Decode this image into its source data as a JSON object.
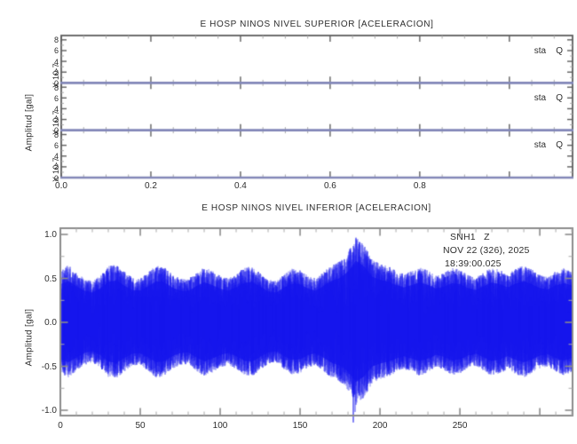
{
  "window": {
    "background": "#ffffff",
    "text_color": "#2e2e2e"
  },
  "chart_data": [
    {
      "type": "line",
      "panel_id": "superior",
      "title": "E HOSP NINOS NIVEL SUPERIOR [ACELERACION]",
      "ylabel": "Amplitud [gal]",
      "xlim": [
        0,
        1.141
      ],
      "x_tick_values": [
        0.0,
        0.2,
        0.4,
        0.6,
        0.8
      ],
      "x_tick_labels": [
        "0.0",
        "0.2",
        "0.4",
        "0.6",
        "0.8"
      ],
      "x_minor_step": 0.05,
      "grid": false,
      "frame_color": "#5f5f5f",
      "trace_color": "#8287b8",
      "subpanels": [
        {
          "scale_label": "X 10-7",
          "right_label": "sta    Q",
          "y_tick_values": [
            0,
            2,
            4,
            6,
            8
          ],
          "ylim": [
            0,
            8.8
          ],
          "trace": {
            "shape": "flat",
            "value": 0
          }
        },
        {
          "scale_label": "X 10-7",
          "right_label": "sta    Q",
          "y_tick_values": [
            0,
            2,
            4,
            6,
            8
          ],
          "ylim": [
            0,
            8.8
          ],
          "trace": {
            "shape": "flat",
            "value": 0
          }
        },
        {
          "scale_label": "X 10-7",
          "right_label": "sta    Q",
          "y_tick_values": [
            0,
            2,
            4,
            6,
            8
          ],
          "ylim": [
            0,
            8.8
          ],
          "trace": {
            "shape": "flat",
            "value": 0
          }
        }
      ]
    },
    {
      "type": "area",
      "panel_id": "inferior",
      "title": "E HOSP NINOS NIVEL INFERIOR [ACELERACION]",
      "ylabel": "Amplitud [gal]",
      "xlim": [
        0,
        320.5
      ],
      "x_tick_values": [
        0,
        50,
        100,
        150,
        200,
        250
      ],
      "x_tick_labels": [
        "0",
        "50",
        "100",
        "150",
        "200",
        "250"
      ],
      "x_minor_step": 10,
      "ylim": [
        -1.07,
        1.07
      ],
      "y_tick_values": [
        -1.0,
        -0.5,
        0.0,
        0.5,
        1.0
      ],
      "y_tick_labels": [
        "-1.0",
        "-0.5",
        "0.0",
        "0.5",
        "1.0"
      ],
      "y_minor_step": 0.25,
      "grid": false,
      "frame_color": "#8c8c8c",
      "trace_color": "#1515ec",
      "annotation": {
        "station": "SNH1   Z",
        "date": "NOV 22 (326), 2025",
        "time": "18:39:00.025"
      },
      "envelope": {
        "comment": "upper amplitude envelope of dense waveform, sampled every 5 s; lower envelope = -upper*lower_scale; peak burst near x=185",
        "x_start": 0,
        "x_step": 5,
        "upper": [
          0.6,
          0.65,
          0.57,
          0.5,
          0.47,
          0.53,
          0.64,
          0.66,
          0.58,
          0.51,
          0.5,
          0.57,
          0.65,
          0.63,
          0.55,
          0.5,
          0.49,
          0.57,
          0.63,
          0.59,
          0.53,
          0.5,
          0.55,
          0.62,
          0.64,
          0.56,
          0.49,
          0.47,
          0.55,
          0.61,
          0.6,
          0.53,
          0.5,
          0.58,
          0.66,
          0.7,
          0.8,
          0.97,
          0.88,
          0.72,
          0.67,
          0.64,
          0.59,
          0.55,
          0.59,
          0.63,
          0.59,
          0.53,
          0.56,
          0.62,
          0.6,
          0.54,
          0.51,
          0.57,
          0.63,
          0.6,
          0.55,
          0.61,
          0.65,
          0.6,
          0.54,
          0.52,
          0.58,
          0.62,
          0.58
        ],
        "lower_scale": 0.97,
        "below_axis_spike_x": 183.3,
        "below_axis_spike_value": -1.14
      }
    }
  ]
}
